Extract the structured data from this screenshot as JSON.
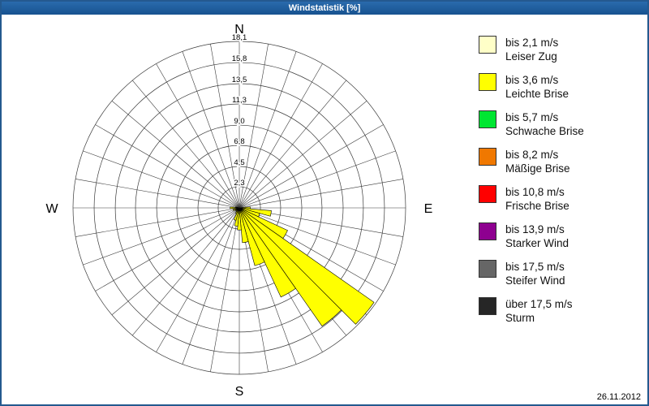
{
  "window": {
    "title": "Windstatistik [%]"
  },
  "footer": {
    "date": "26.11.2012"
  },
  "legend": {
    "items": [
      {
        "speed": "bis 2,1 m/s",
        "name": "Leiser Zug",
        "color": "#FFFFC8"
      },
      {
        "speed": "bis 3,6 m/s",
        "name": "Leichte Brise",
        "color": "#FFFF00"
      },
      {
        "speed": "bis 5,7 m/s",
        "name": "Schwache Brise",
        "color": "#00E632"
      },
      {
        "speed": "bis 8,2 m/s",
        "name": "Mäßige Brise",
        "color": "#F07800"
      },
      {
        "speed": "bis 10,8 m/s",
        "name": "Frische Brise",
        "color": "#FF0000"
      },
      {
        "speed": "bis 13,9 m/s",
        "name": "Starker Wind",
        "color": "#8E0090"
      },
      {
        "speed": "bis 17,5 m/s",
        "name": "Steifer Wind",
        "color": "#666666"
      },
      {
        "speed": "über 17,5 m/s",
        "name": "Sturm",
        "color": "#262626"
      }
    ]
  },
  "chart_data": {
    "type": "windrose",
    "title": "Windstatistik [%]",
    "units": "percent",
    "sector_count": 36,
    "sector_width_deg": 10,
    "max": 18.1,
    "ring_values": [
      2.3,
      4.5,
      6.8,
      9.0,
      11.3,
      13.5,
      15.8,
      18.1
    ],
    "ring_labels": [
      "2,3",
      "4,5",
      "6,8",
      "9,0",
      "11,3",
      "13,5",
      "15,8",
      "18,1"
    ],
    "compass": {
      "north": "N",
      "east": "E",
      "south": "S",
      "west": "W"
    },
    "series": [
      {
        "name": "bis 2,1 m/s",
        "color": "#FFFFC8",
        "values": [
          0,
          0,
          0,
          0,
          0,
          0,
          0,
          0,
          0,
          0.2,
          0.3,
          0.3,
          0.3,
          0.4,
          0.4,
          0.3,
          0.3,
          0.3,
          0.2,
          0.2,
          0.2,
          0.1,
          0.1,
          0.1,
          0.1,
          0.1,
          0.1,
          0.2,
          0.1,
          0,
          0,
          0,
          0,
          0,
          0,
          0
        ]
      },
      {
        "name": "bis 3,6 m/s",
        "color": "#FFFF00",
        "values": [
          0,
          0,
          0,
          0,
          0,
          0,
          0,
          0,
          0,
          1.0,
          3.2,
          2.0,
          5.5,
          17.5,
          15.3,
          10.4,
          6.2,
          3.5,
          2.2,
          1.8,
          1.2,
          0.6,
          0.4,
          0.3,
          0.4,
          0.6,
          0.3,
          0.8,
          0.3,
          0,
          0,
          0,
          0,
          0,
          0,
          0
        ]
      },
      {
        "name": "bis 5,7 m/s",
        "color": "#00E632",
        "values": [
          0,
          0,
          0,
          0,
          0,
          0,
          0,
          0,
          0,
          0,
          0,
          0,
          0,
          0,
          0,
          0,
          0,
          0,
          0,
          0,
          0,
          0,
          0,
          0,
          0,
          0,
          0,
          0,
          0,
          0,
          0,
          0,
          0,
          0,
          0,
          0
        ]
      },
      {
        "name": "bis 8,2 m/s",
        "color": "#F07800",
        "values": [
          0,
          0,
          0,
          0,
          0,
          0,
          0,
          0,
          0,
          0,
          0,
          0,
          0,
          0,
          0,
          0,
          0,
          0,
          0,
          0,
          0,
          0,
          0,
          0,
          0,
          0,
          0,
          0,
          0,
          0,
          0,
          0,
          0,
          0,
          0,
          0
        ]
      },
      {
        "name": "bis 10,8 m/s",
        "color": "#FF0000",
        "values": [
          0,
          0,
          0,
          0,
          0,
          0,
          0,
          0,
          0,
          0,
          0,
          0,
          0,
          0,
          0,
          0,
          0,
          0,
          0,
          0,
          0,
          0,
          0,
          0,
          0,
          0,
          0,
          0,
          0,
          0,
          0,
          0,
          0,
          0,
          0,
          0
        ]
      },
      {
        "name": "bis 13,9 m/s",
        "color": "#8E0090",
        "values": [
          0,
          0,
          0,
          0,
          0,
          0,
          0,
          0,
          0,
          0,
          0,
          0,
          0,
          0,
          0,
          0,
          0,
          0,
          0,
          0,
          0,
          0,
          0,
          0,
          0,
          0,
          0,
          0,
          0,
          0,
          0,
          0,
          0,
          0,
          0,
          0
        ]
      },
      {
        "name": "bis 17,5 m/s",
        "color": "#666666",
        "values": [
          0,
          0,
          0,
          0,
          0,
          0,
          0,
          0,
          0,
          0,
          0,
          0,
          0,
          0,
          0,
          0,
          0,
          0,
          0,
          0,
          0,
          0,
          0,
          0,
          0,
          0,
          0,
          0,
          0,
          0,
          0,
          0,
          0,
          0,
          0,
          0
        ]
      },
      {
        "name": "über 17,5 m/s",
        "color": "#262626",
        "values": [
          0,
          0,
          0,
          0,
          0,
          0,
          0,
          0,
          0,
          0,
          0,
          0,
          0,
          0,
          0,
          0,
          0,
          0,
          0,
          0,
          0,
          0,
          0,
          0,
          0,
          0,
          0,
          0,
          0,
          0,
          0,
          0,
          0,
          0,
          0,
          0
        ]
      }
    ]
  }
}
